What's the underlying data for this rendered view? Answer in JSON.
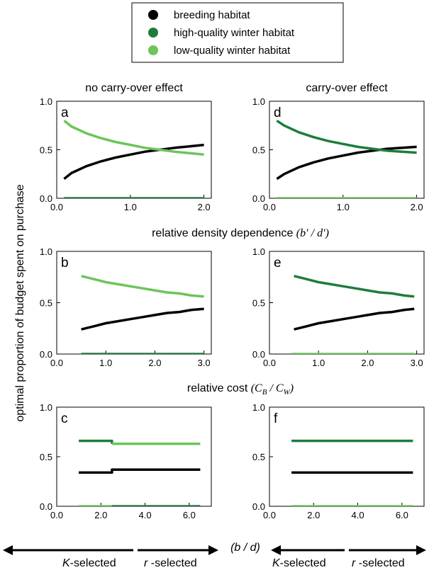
{
  "legend": {
    "entries": [
      {
        "name": "breeding habitat",
        "color": "#000000"
      },
      {
        "name": "high-quality winter habitat",
        "color": "#1e7d3c"
      },
      {
        "name": "low-quality winter habitat",
        "color": "#6cc55a"
      }
    ]
  },
  "column_titles": [
    "no carry-over effect",
    "carry-over effect"
  ],
  "ylabel": "optimal proportion of budget spent on purchase",
  "row_xlabels": {
    "row1": {
      "text": "relative density dependence ",
      "math": "(b′ / d′)"
    },
    "row2": {
      "text": "relative cost ",
      "math_open": "(C",
      "sub1": "B",
      "math_mid": " / C",
      "sub2": "W",
      "math_close": ")"
    },
    "row3": {
      "math": "(b / d)"
    }
  },
  "selection_arrows": {
    "left": {
      "prefix": "K",
      "suffix": "-selected"
    },
    "right": {
      "prefix": "r",
      "suffix": " -selected"
    }
  },
  "chart_data": [
    {
      "panel": "a",
      "type": "line",
      "title": "no carry-over effect",
      "xlim": [
        0,
        2.1
      ],
      "ylim": [
        0,
        1
      ],
      "xticks": [
        0,
        1,
        2
      ],
      "xticklabels": [
        "0.0",
        "1.0",
        "2.0"
      ],
      "yticks": [
        0,
        0.5,
        1
      ],
      "yticklabels": [
        "0.0",
        "0.5",
        "1.0"
      ],
      "series": [
        {
          "name": "breeding habitat",
          "color": "#000000",
          "x": [
            0.1,
            0.2,
            0.4,
            0.6,
            0.8,
            1.0,
            1.2,
            1.4,
            1.6,
            1.8,
            2.0
          ],
          "y": [
            0.2,
            0.26,
            0.33,
            0.38,
            0.42,
            0.45,
            0.48,
            0.5,
            0.52,
            0.535,
            0.55
          ]
        },
        {
          "name": "high-quality winter habitat",
          "color": "#1e7d3c",
          "x": [
            0.1,
            2.0
          ],
          "y": [
            0.0,
            0.0
          ]
        },
        {
          "name": "low-quality winter habitat",
          "color": "#6cc55a",
          "x": [
            0.1,
            0.2,
            0.4,
            0.6,
            0.8,
            1.0,
            1.2,
            1.4,
            1.6,
            1.8,
            2.0
          ],
          "y": [
            0.8,
            0.74,
            0.67,
            0.62,
            0.58,
            0.55,
            0.52,
            0.5,
            0.48,
            0.465,
            0.45
          ]
        }
      ]
    },
    {
      "panel": "d",
      "type": "line",
      "title": "carry-over effect",
      "xlim": [
        0,
        2.1
      ],
      "ylim": [
        0,
        1
      ],
      "xticks": [
        0,
        1,
        2
      ],
      "xticklabels": [
        "0.0",
        "1.0",
        "2.0"
      ],
      "yticks": [
        0,
        0.5,
        1
      ],
      "yticklabels": [
        "0.0",
        "0.5",
        "1.0"
      ],
      "series": [
        {
          "name": "breeding habitat",
          "color": "#000000",
          "x": [
            0.1,
            0.2,
            0.4,
            0.6,
            0.8,
            1.0,
            1.2,
            1.4,
            1.6,
            1.8,
            2.0
          ],
          "y": [
            0.2,
            0.25,
            0.32,
            0.37,
            0.41,
            0.44,
            0.47,
            0.49,
            0.51,
            0.52,
            0.53
          ]
        },
        {
          "name": "high-quality winter habitat",
          "color": "#1e7d3c",
          "x": [
            0.1,
            0.2,
            0.4,
            0.6,
            0.8,
            1.0,
            1.2,
            1.4,
            1.6,
            1.8,
            2.0
          ],
          "y": [
            0.8,
            0.75,
            0.68,
            0.63,
            0.59,
            0.56,
            0.53,
            0.51,
            0.49,
            0.48,
            0.47
          ]
        },
        {
          "name": "low-quality winter habitat",
          "color": "#6cc55a",
          "x": [
            0.1,
            2.0
          ],
          "y": [
            0.0,
            0.0
          ]
        }
      ]
    },
    {
      "panel": "b",
      "type": "line",
      "xlim": [
        0,
        3.15
      ],
      "ylim": [
        0,
        1
      ],
      "xticks": [
        0,
        1,
        2,
        3
      ],
      "xticklabels": [
        "0.0",
        "1.0",
        "2.0",
        "3.0"
      ],
      "yticks": [
        0,
        0.5,
        1
      ],
      "yticklabels": [
        "0.0",
        "0.5",
        "1.0"
      ],
      "series": [
        {
          "name": "breeding habitat",
          "color": "#000000",
          "x": [
            0.5,
            0.75,
            1.0,
            1.25,
            1.5,
            1.75,
            2.0,
            2.25,
            2.5,
            2.75,
            3.0
          ],
          "y": [
            0.24,
            0.27,
            0.3,
            0.32,
            0.34,
            0.36,
            0.38,
            0.4,
            0.41,
            0.43,
            0.44
          ]
        },
        {
          "name": "high-quality winter habitat",
          "color": "#1e7d3c",
          "x": [
            0.5,
            3.0
          ],
          "y": [
            0.0,
            0.0
          ]
        },
        {
          "name": "low-quality winter habitat",
          "color": "#6cc55a",
          "x": [
            0.5,
            0.75,
            1.0,
            1.25,
            1.5,
            1.75,
            2.0,
            2.25,
            2.5,
            2.75,
            3.0
          ],
          "y": [
            0.76,
            0.73,
            0.7,
            0.68,
            0.66,
            0.64,
            0.62,
            0.6,
            0.59,
            0.57,
            0.56
          ]
        }
      ]
    },
    {
      "panel": "e",
      "type": "line",
      "xlim": [
        0,
        3.15
      ],
      "ylim": [
        0,
        1
      ],
      "xticks": [
        0,
        1,
        2,
        3
      ],
      "xticklabels": [
        "0.0",
        "1.0",
        "2.0",
        "3.0"
      ],
      "yticks": [
        0,
        0.5,
        1
      ],
      "yticklabels": [
        "0.0",
        "0.5",
        "1.0"
      ],
      "series": [
        {
          "name": "breeding habitat",
          "color": "#000000",
          "x": [
            0.5,
            0.75,
            1.0,
            1.25,
            1.5,
            1.75,
            2.0,
            2.25,
            2.5,
            2.75,
            2.95
          ],
          "y": [
            0.24,
            0.27,
            0.3,
            0.32,
            0.34,
            0.36,
            0.38,
            0.4,
            0.41,
            0.43,
            0.44
          ]
        },
        {
          "name": "high-quality winter habitat",
          "color": "#1e7d3c",
          "x": [
            0.5,
            0.75,
            1.0,
            1.25,
            1.5,
            1.75,
            2.0,
            2.25,
            2.5,
            2.75,
            2.95
          ],
          "y": [
            0.76,
            0.73,
            0.7,
            0.68,
            0.66,
            0.64,
            0.62,
            0.6,
            0.59,
            0.57,
            0.56
          ]
        },
        {
          "name": "low-quality winter habitat",
          "color": "#6cc55a",
          "x": [
            0.45,
            2.95
          ],
          "y": [
            0.0,
            0.0
          ]
        }
      ]
    },
    {
      "panel": "c",
      "type": "line",
      "xlim": [
        0,
        7
      ],
      "ylim": [
        0,
        1
      ],
      "xticks": [
        0,
        2,
        4,
        6
      ],
      "xticklabels": [
        "0.0",
        "2.0",
        "4.0",
        "6.0"
      ],
      "yticks": [
        0,
        0.5,
        1
      ],
      "yticklabels": [
        "0.0",
        "0.5",
        "1.0"
      ],
      "series": [
        {
          "name": "breeding habitat",
          "color": "#000000",
          "x": [
            1,
            2.5,
            2.5,
            6.5
          ],
          "y": [
            0.34,
            0.34,
            0.37,
            0.37
          ]
        },
        {
          "name": "high-quality winter habitat",
          "color": "#1e7d3c",
          "segments": [
            {
              "x": [
                1,
                2.5,
                2.5
              ],
              "y": [
                0.66,
                0.66,
                0.63
              ]
            },
            {
              "x": [
                2.5,
                6.5
              ],
              "y": [
                0.0,
                0.0
              ]
            }
          ]
        },
        {
          "name": "low-quality winter habitat",
          "color": "#6cc55a",
          "segments": [
            {
              "x": [
                1,
                2.5
              ],
              "y": [
                0.0,
                0.0
              ]
            },
            {
              "x": [
                2.5,
                6.5
              ],
              "y": [
                0.63,
                0.63
              ]
            }
          ]
        }
      ]
    },
    {
      "panel": "f",
      "type": "line",
      "xlim": [
        0,
        7
      ],
      "ylim": [
        0,
        1
      ],
      "xticks": [
        0,
        2,
        4,
        6
      ],
      "xticklabels": [
        "0.0",
        "2.0",
        "4.0",
        "6.0"
      ],
      "yticks": [
        0,
        0.5,
        1
      ],
      "yticklabels": [
        "0.0",
        "0.5",
        "1.0"
      ],
      "series": [
        {
          "name": "breeding habitat",
          "color": "#000000",
          "x": [
            1,
            6.5
          ],
          "y": [
            0.34,
            0.34
          ]
        },
        {
          "name": "high-quality winter habitat",
          "color": "#1e7d3c",
          "x": [
            1,
            6.5
          ],
          "y": [
            0.66,
            0.66
          ]
        },
        {
          "name": "low-quality winter habitat",
          "color": "#6cc55a",
          "x": [
            1,
            6.5
          ],
          "y": [
            0.0,
            0.0
          ]
        }
      ]
    }
  ]
}
